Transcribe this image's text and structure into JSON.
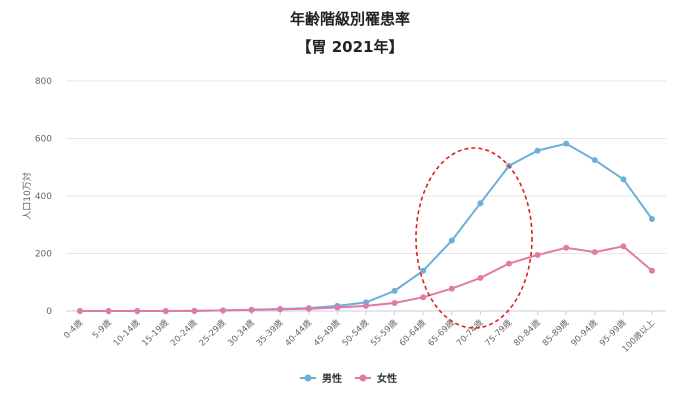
{
  "chart_data": {
    "type": "line",
    "title": "年齢階級別罹患率",
    "subtitle": "【胃 2021年】",
    "ylabel": "人口10万対",
    "ylim": [
      0,
      800
    ],
    "yticks": [
      0,
      200,
      400,
      600,
      800
    ],
    "grid": true,
    "legend_position": "bottom",
    "categories": [
      "0-4歳",
      "5-9歳",
      "10-14歳",
      "15-19歳",
      "20-24歳",
      "25-29歳",
      "30-34歳",
      "35-39歳",
      "40-44歳",
      "45-49歳",
      "50-54歳",
      "55-59歳",
      "60-64歳",
      "65-69歳",
      "70-74歳",
      "75-79歳",
      "80-84歳",
      "85-89歳",
      "90-94歳",
      "95-99歳",
      "100歳以上"
    ],
    "series": [
      {
        "name": "男性",
        "color": "#6ab0d8",
        "values": [
          0,
          0,
          0,
          0,
          0.5,
          2,
          4,
          7,
          10,
          18,
          30,
          70,
          140,
          245,
          375,
          505,
          558,
          582,
          525,
          458,
          320
        ]
      },
      {
        "name": "女性",
        "color": "#e07aa8",
        "values": [
          0,
          0,
          0,
          0,
          0.5,
          2,
          4,
          6,
          8,
          12,
          18,
          28,
          48,
          78,
          115,
          165,
          195,
          220,
          205,
          225,
          140
        ]
      }
    ],
    "annotation": {
      "shape": "dashed-ellipse",
      "color": "#e02020",
      "covers_categories": [
        "65-69歳",
        "75-79歳"
      ]
    }
  }
}
